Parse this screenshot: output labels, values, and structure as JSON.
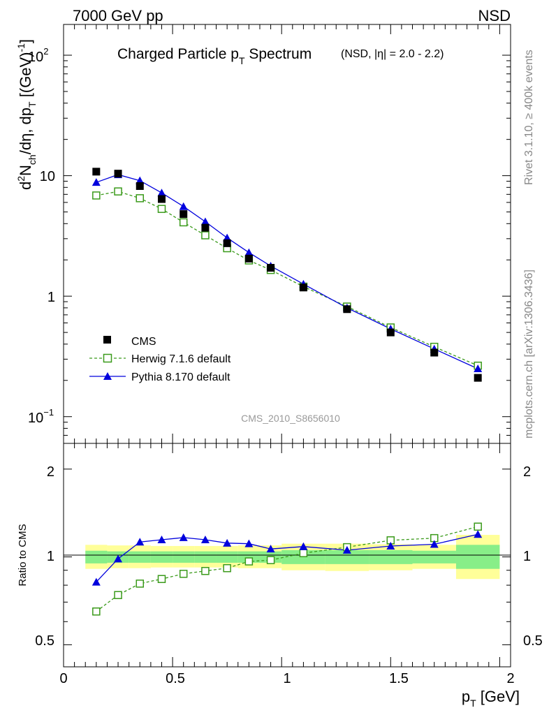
{
  "header": {
    "left": "7000 GeV pp",
    "right": "NSD"
  },
  "side_labels": {
    "rivet": "Rivet 3.1.10, ≥ 400k events",
    "mcplots": "mcplots.cern.ch [arXiv:1306.3436]"
  },
  "watermark": "CMS_2010_S8656010",
  "chart_data": [
    {
      "type": "scatter",
      "title_main": "Charged Particle p",
      "title_main_sub": "T",
      "title_main_tail": " Spectrum",
      "title_small": "(NSD, |η| = 2.0 - 2.2)",
      "ylabel": "d²N_ch/dη, dp_T [(GeV)⁻¹]",
      "ylabel_parts": {
        "d": "d",
        "d_sup": "2",
        "N": "N",
        "ch_sub": "ch",
        "mid": "/dη, dp",
        "T_sub": "T",
        "unit": " [(GeV)",
        "unit_sup": "-1",
        "close": "]"
      },
      "yscale": "log",
      "ylim": [
        0.06,
        180
      ],
      "xlim": [
        0,
        2.05
      ],
      "y_tick_labels": {
        "t100": "10",
        "t100_sup": "2",
        "t10": "10",
        "t1": "1",
        "t01": "10",
        "t01_sup": "−1"
      },
      "legend_position": "bottom-left",
      "series": [
        {
          "name": "CMS",
          "color": "#000000",
          "marker": "filled-square",
          "x": [
            0.15,
            0.25,
            0.35,
            0.45,
            0.55,
            0.65,
            0.75,
            0.85,
            0.95,
            1.1,
            1.3,
            1.5,
            1.7,
            1.9
          ],
          "y": [
            10.8,
            10.4,
            8.2,
            6.4,
            4.8,
            3.7,
            2.75,
            2.05,
            1.72,
            1.18,
            0.78,
            0.5,
            0.34,
            0.21
          ]
        },
        {
          "name": "Herwig 7.1.6 default",
          "color": "#3a9a1a",
          "marker": "open-square",
          "line": "dashed",
          "x": [
            0.15,
            0.25,
            0.35,
            0.45,
            0.55,
            0.65,
            0.75,
            0.85,
            0.95,
            1.1,
            1.3,
            1.5,
            1.7,
            1.9
          ],
          "y": [
            6.85,
            7.4,
            6.5,
            5.3,
            4.1,
            3.2,
            2.5,
            1.98,
            1.65,
            1.2,
            0.82,
            0.55,
            0.38,
            0.265
          ]
        },
        {
          "name": "Pythia 8.170 default",
          "color": "#0000dd",
          "marker": "filled-triangle",
          "line": "solid",
          "x": [
            0.15,
            0.25,
            0.35,
            0.45,
            0.55,
            0.65,
            0.75,
            0.85,
            0.95,
            1.1,
            1.3,
            1.5,
            1.7,
            1.9
          ],
          "y": [
            8.8,
            10.2,
            9.1,
            7.2,
            5.55,
            4.15,
            3.05,
            2.3,
            1.78,
            1.26,
            0.8,
            0.535,
            0.365,
            0.25
          ]
        }
      ]
    },
    {
      "type": "line",
      "ylabel": "Ratio to CMS",
      "yscale": "log",
      "ylim": [
        0.42,
        2.45
      ],
      "xlim": [
        0,
        2.05
      ],
      "xlabel_main": "p",
      "xlabel_sub": "T",
      "xlabel_unit": " [GeV]",
      "y_tick_labels": [
        "2",
        "1",
        "0.5"
      ],
      "x_tick_labels": [
        "0",
        "0.5",
        "1",
        "1.5",
        "2"
      ],
      "bands": {
        "x_edges": [
          0.1,
          0.2,
          0.3,
          0.4,
          0.5,
          0.6,
          0.7,
          0.8,
          0.9,
          1.0,
          1.2,
          1.4,
          1.6,
          1.8,
          2.0
        ],
        "outer_lo": [
          0.91,
          0.915,
          0.915,
          0.92,
          0.92,
          0.92,
          0.92,
          0.915,
          0.915,
          0.9,
          0.895,
          0.9,
          0.91,
          0.84
        ],
        "outer_hi": [
          1.1,
          1.095,
          1.095,
          1.09,
          1.09,
          1.09,
          1.09,
          1.095,
          1.095,
          1.11,
          1.11,
          1.105,
          1.1,
          1.19
        ],
        "inner_lo": [
          0.95,
          0.955,
          0.955,
          0.955,
          0.955,
          0.955,
          0.955,
          0.955,
          0.955,
          0.945,
          0.945,
          0.945,
          0.95,
          0.91
        ],
        "inner_hi": [
          1.05,
          1.045,
          1.045,
          1.045,
          1.045,
          1.045,
          1.045,
          1.045,
          1.045,
          1.055,
          1.055,
          1.055,
          1.05,
          1.1
        ],
        "outer_color": "#ffff99",
        "inner_color": "#88ee88"
      },
      "series": [
        {
          "name": "Herwig 7.1.6 default",
          "color": "#3a9a1a",
          "marker": "open-square",
          "line": "dashed",
          "x": [
            0.15,
            0.25,
            0.35,
            0.45,
            0.55,
            0.65,
            0.75,
            0.85,
            0.95,
            1.1,
            1.3,
            1.5,
            1.7,
            1.9
          ],
          "y": [
            0.65,
            0.74,
            0.81,
            0.84,
            0.875,
            0.895,
            0.915,
            0.965,
            0.975,
            1.03,
            1.08,
            1.14,
            1.16,
            1.27
          ]
        },
        {
          "name": "Pythia 8.170 default",
          "color": "#0000dd",
          "marker": "filled-triangle",
          "line": "solid",
          "x": [
            0.15,
            0.25,
            0.35,
            0.45,
            0.55,
            0.65,
            0.75,
            0.85,
            0.95,
            1.1,
            1.3,
            1.5,
            1.7,
            1.9
          ],
          "y": [
            0.82,
            0.985,
            1.125,
            1.145,
            1.165,
            1.145,
            1.115,
            1.11,
            1.065,
            1.085,
            1.055,
            1.09,
            1.105,
            1.195
          ]
        }
      ]
    }
  ]
}
